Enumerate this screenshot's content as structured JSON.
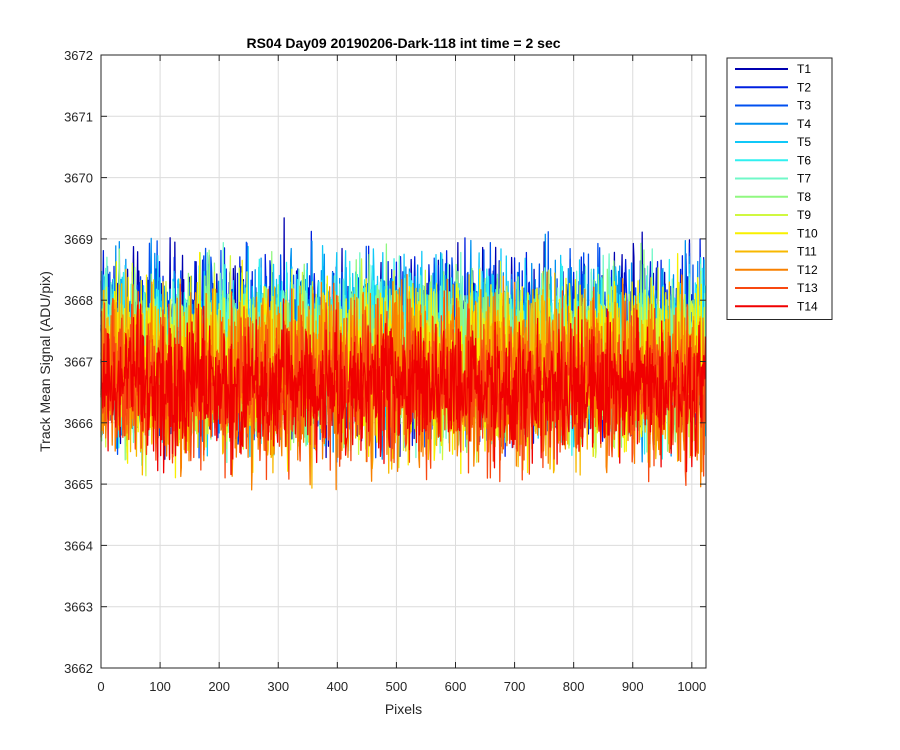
{
  "chart_data": {
    "type": "line",
    "title": "RS04 Day09 20190206-Dark-118 int time = 2 sec",
    "xlabel": "Pixels",
    "ylabel": "Track Mean Signal (ADU/pix)",
    "xlim": [
      0,
      1024
    ],
    "ylim": [
      3662,
      3672
    ],
    "xticks": [
      0,
      100,
      200,
      300,
      400,
      500,
      600,
      700,
      800,
      900,
      1000
    ],
    "yticks": [
      3662,
      3663,
      3664,
      3665,
      3666,
      3667,
      3668,
      3669,
      3670,
      3671,
      3672
    ],
    "grid": true,
    "legend_position": "outside-top-right",
    "n_points": 1024,
    "series": [
      {
        "name": "T1",
        "color": "#0000b0",
        "mean": 3667.3,
        "spread": 2.1
      },
      {
        "name": "T2",
        "color": "#0020e0",
        "mean": 3667.3,
        "spread": 2.1
      },
      {
        "name": "T3",
        "color": "#0050f0",
        "mean": 3667.2,
        "spread": 2.1
      },
      {
        "name": "T4",
        "color": "#0090f0",
        "mean": 3667.2,
        "spread": 2.1
      },
      {
        "name": "T5",
        "color": "#10c8f8",
        "mean": 3667.2,
        "spread": 2.0
      },
      {
        "name": "T6",
        "color": "#30f0f0",
        "mean": 3667.1,
        "spread": 2.0
      },
      {
        "name": "T7",
        "color": "#70f8c8",
        "mean": 3667.1,
        "spread": 2.0
      },
      {
        "name": "T8",
        "color": "#90f880",
        "mean": 3667.1,
        "spread": 2.0
      },
      {
        "name": "T9",
        "color": "#d0f840",
        "mean": 3667.0,
        "spread": 2.0
      },
      {
        "name": "T10",
        "color": "#f8f000",
        "mean": 3666.9,
        "spread": 2.0
      },
      {
        "name": "T11",
        "color": "#f8b800",
        "mean": 3666.8,
        "spread": 2.0
      },
      {
        "name": "T12",
        "color": "#f88000",
        "mean": 3666.7,
        "spread": 2.0
      },
      {
        "name": "T13",
        "color": "#f84810",
        "mean": 3666.6,
        "spread": 1.9
      },
      {
        "name": "T14",
        "color": "#f00000",
        "mean": 3666.6,
        "spread": 1.6
      }
    ]
  }
}
